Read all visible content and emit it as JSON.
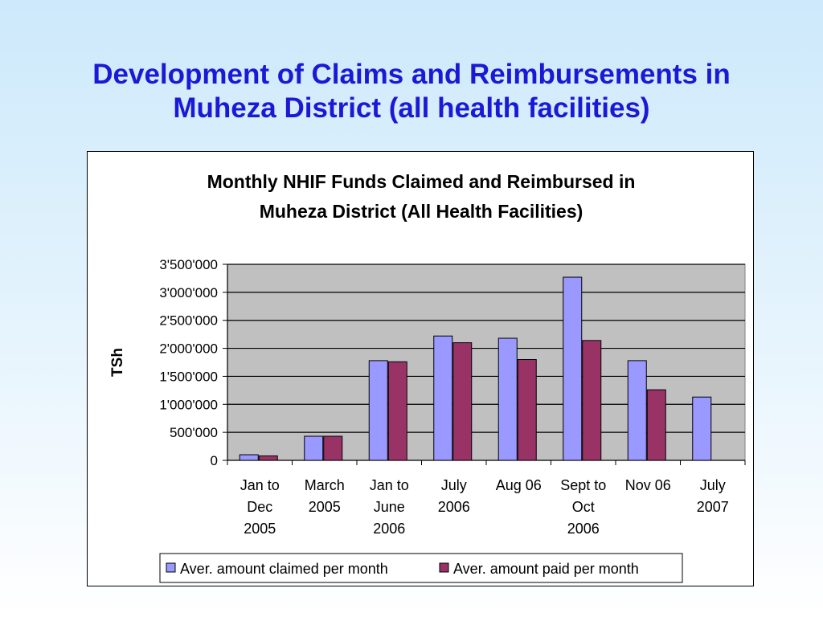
{
  "slide": {
    "title_lines": [
      "Development of Claims and Reimbursements in",
      "Muheza District (all health facilities)"
    ]
  },
  "chart_data": {
    "type": "bar",
    "title_lines": [
      "Monthly NHIF Funds Claimed and Reimbursed in",
      "Muheza District (All Health Facilities)"
    ],
    "title": "Monthly NHIF Funds Claimed and Reimbursed in Muheza District (All Health Facilities)",
    "xlabel": "",
    "ylabel": "TSh",
    "ylim": [
      0,
      3500000
    ],
    "yticks": [
      0,
      500000,
      1000000,
      1500000,
      2000000,
      2500000,
      3000000,
      3500000
    ],
    "ytick_labels": [
      "0",
      "500'000",
      "1'000'000",
      "1'500'000",
      "2'000'000",
      "2'500'000",
      "3'000'000",
      "3'500'000"
    ],
    "grid": true,
    "legend_position": "bottom",
    "categories": [
      [
        "Jan to",
        "Dec",
        "2005"
      ],
      [
        "March",
        "2005"
      ],
      [
        "Jan to",
        "June",
        "2006"
      ],
      [
        "July",
        "2006"
      ],
      [
        "Aug 06"
      ],
      [
        "Sept to",
        "Oct",
        "2006"
      ],
      [
        "Nov 06"
      ],
      [
        "July",
        "2007"
      ]
    ],
    "series": [
      {
        "name": "Aver. amount claimed per month",
        "color": "#9999ff",
        "values": [
          100000,
          430000,
          1780000,
          2220000,
          2180000,
          3270000,
          1780000,
          1130000
        ]
      },
      {
        "name": "Aver. amount paid per month",
        "color": "#993366",
        "values": [
          80000,
          430000,
          1760000,
          2100000,
          1800000,
          2140000,
          1260000,
          null
        ]
      }
    ],
    "plot_background": "#c0c0c0"
  }
}
